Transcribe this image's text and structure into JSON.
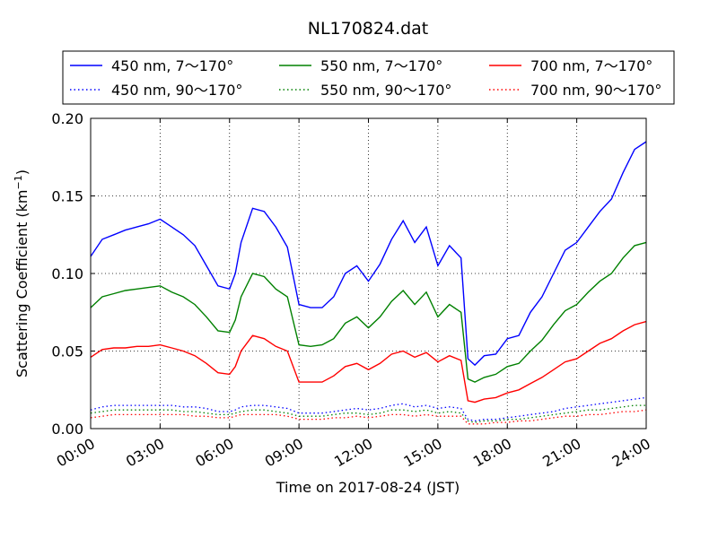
{
  "chart_data": {
    "type": "line",
    "title": "NL170824.dat",
    "xlabel": "Time on 2017-08-24 (JST)",
    "ylabel": "Scattering Coefficient (km",
    "ylabel_sup": "−1",
    "ylabel_close": ")",
    "x_ticks": [
      "00:00",
      "03:00",
      "06:00",
      "09:00",
      "12:00",
      "15:00",
      "18:00",
      "21:00",
      "24:00"
    ],
    "y_ticks": [
      "0.00",
      "0.05",
      "0.10",
      "0.15",
      "0.20"
    ],
    "xlim_hours": [
      0,
      24
    ],
    "ylim": [
      0,
      0.2
    ],
    "grid": true,
    "legend_position": "top, above plot",
    "x_hours": [
      0,
      0.5,
      1,
      1.5,
      2,
      2.5,
      3,
      3.5,
      4,
      4.5,
      5,
      5.5,
      6,
      6.25,
      6.5,
      7,
      7.5,
      8,
      8.5,
      9,
      9.5,
      10,
      10.5,
      11,
      11.5,
      12,
      12.5,
      13,
      13.5,
      14,
      14.5,
      15,
      15.5,
      16,
      16.3,
      16.6,
      17,
      17.5,
      18,
      18.5,
      19,
      19.5,
      20,
      20.5,
      21,
      21.5,
      22,
      22.5,
      23,
      23.5,
      24
    ],
    "series": [
      {
        "name": "450 nm, 7～170°",
        "color": "#0000ff",
        "style": "solid",
        "values": [
          0.111,
          0.122,
          0.125,
          0.128,
          0.13,
          0.132,
          0.135,
          0.13,
          0.125,
          0.118,
          0.105,
          0.092,
          0.09,
          0.1,
          0.12,
          0.142,
          0.14,
          0.13,
          0.117,
          0.08,
          0.078,
          0.078,
          0.085,
          0.1,
          0.105,
          0.095,
          0.106,
          0.122,
          0.134,
          0.12,
          0.13,
          0.105,
          0.118,
          0.11,
          0.045,
          0.041,
          0.047,
          0.048,
          0.058,
          0.06,
          0.075,
          0.085,
          0.1,
          0.115,
          0.12,
          0.13,
          0.14,
          0.148,
          0.165,
          0.18,
          0.185
        ]
      },
      {
        "name": "550 nm, 7～170°",
        "color": "#008000",
        "style": "solid",
        "values": [
          0.078,
          0.085,
          0.087,
          0.089,
          0.09,
          0.091,
          0.092,
          0.088,
          0.085,
          0.08,
          0.072,
          0.063,
          0.062,
          0.07,
          0.085,
          0.1,
          0.098,
          0.09,
          0.085,
          0.054,
          0.053,
          0.054,
          0.058,
          0.068,
          0.072,
          0.065,
          0.072,
          0.082,
          0.089,
          0.08,
          0.088,
          0.072,
          0.08,
          0.075,
          0.032,
          0.03,
          0.033,
          0.035,
          0.04,
          0.042,
          0.05,
          0.057,
          0.067,
          0.076,
          0.08,
          0.088,
          0.095,
          0.1,
          0.11,
          0.118,
          0.12
        ]
      },
      {
        "name": "700 nm, 7～170°",
        "color": "#ff0000",
        "style": "solid",
        "values": [
          0.046,
          0.051,
          0.052,
          0.052,
          0.053,
          0.053,
          0.054,
          0.052,
          0.05,
          0.047,
          0.042,
          0.036,
          0.035,
          0.04,
          0.05,
          0.06,
          0.058,
          0.053,
          0.05,
          0.03,
          0.03,
          0.03,
          0.034,
          0.04,
          0.042,
          0.038,
          0.042,
          0.048,
          0.05,
          0.046,
          0.049,
          0.043,
          0.047,
          0.044,
          0.018,
          0.017,
          0.019,
          0.02,
          0.023,
          0.025,
          0.029,
          0.033,
          0.038,
          0.043,
          0.045,
          0.05,
          0.055,
          0.058,
          0.063,
          0.067,
          0.069
        ]
      },
      {
        "name": "450 nm, 90～170°",
        "color": "#0000ff",
        "style": "dotted",
        "values": [
          0.012,
          0.014,
          0.015,
          0.015,
          0.015,
          0.015,
          0.015,
          0.015,
          0.014,
          0.014,
          0.013,
          0.011,
          0.011,
          0.012,
          0.014,
          0.015,
          0.015,
          0.014,
          0.013,
          0.01,
          0.01,
          0.01,
          0.011,
          0.012,
          0.013,
          0.012,
          0.013,
          0.015,
          0.016,
          0.014,
          0.015,
          0.013,
          0.014,
          0.013,
          0.006,
          0.005,
          0.006,
          0.006,
          0.007,
          0.008,
          0.009,
          0.01,
          0.011,
          0.013,
          0.014,
          0.015,
          0.016,
          0.017,
          0.018,
          0.019,
          0.02
        ]
      },
      {
        "name": "550 nm, 90～170°",
        "color": "#008000",
        "style": "dotted",
        "values": [
          0.01,
          0.011,
          0.012,
          0.012,
          0.012,
          0.012,
          0.012,
          0.012,
          0.011,
          0.011,
          0.01,
          0.009,
          0.009,
          0.01,
          0.011,
          0.012,
          0.012,
          0.011,
          0.01,
          0.008,
          0.008,
          0.008,
          0.009,
          0.01,
          0.01,
          0.009,
          0.01,
          0.012,
          0.012,
          0.011,
          0.012,
          0.01,
          0.011,
          0.01,
          0.005,
          0.004,
          0.005,
          0.005,
          0.006,
          0.006,
          0.007,
          0.008,
          0.009,
          0.01,
          0.011,
          0.012,
          0.012,
          0.013,
          0.014,
          0.015,
          0.015
        ]
      },
      {
        "name": "700 nm, 90～170°",
        "color": "#ff0000",
        "style": "dotted",
        "values": [
          0.007,
          0.008,
          0.009,
          0.009,
          0.009,
          0.009,
          0.009,
          0.009,
          0.009,
          0.008,
          0.008,
          0.007,
          0.007,
          0.008,
          0.009,
          0.009,
          0.009,
          0.009,
          0.008,
          0.006,
          0.006,
          0.006,
          0.007,
          0.007,
          0.008,
          0.007,
          0.008,
          0.009,
          0.009,
          0.008,
          0.009,
          0.008,
          0.008,
          0.008,
          0.003,
          0.003,
          0.003,
          0.004,
          0.004,
          0.005,
          0.005,
          0.006,
          0.007,
          0.008,
          0.008,
          0.009,
          0.009,
          0.01,
          0.011,
          0.011,
          0.012
        ]
      }
    ]
  }
}
